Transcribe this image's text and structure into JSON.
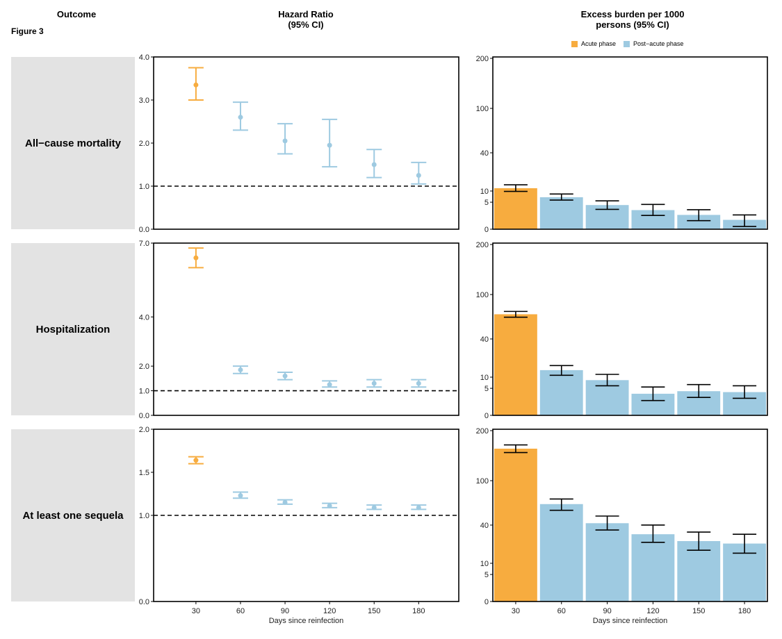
{
  "headers": {
    "outcome": "Outcome",
    "figure": "Figure 3",
    "hr_line1": "Hazard Ratio",
    "hr_line2": "(95% CI)",
    "burden_line1": "Excess burden per 1000",
    "burden_line2": "persons (95% CI)"
  },
  "legend": [
    {
      "label": "Acute phase",
      "color": "#f7ac3f"
    },
    {
      "label": "Post−acute phase",
      "color": "#9ecae1"
    }
  ],
  "colors": {
    "acute": "#f7ac3f",
    "post_acute": "#9ecae1",
    "panel_bg": "#e3e3e3"
  },
  "chart_data": [
    {
      "type": "scatter",
      "title": "All−cause mortality — Hazard Ratio (95% CI)",
      "row_label": "All−cause mortality",
      "xlabel": "Days since reinfection",
      "categories": [
        "30",
        "60",
        "90",
        "120",
        "150",
        "180"
      ],
      "estimate": [
        3.35,
        2.6,
        2.05,
        1.95,
        1.5,
        1.25
      ],
      "lower": [
        3.0,
        2.3,
        1.75,
        1.45,
        1.2,
        1.05
      ],
      "upper": [
        3.75,
        2.95,
        2.45,
        2.55,
        1.85,
        1.55
      ],
      "phase": [
        "acute",
        "post",
        "post",
        "post",
        "post",
        "post"
      ],
      "yticks": [
        "0.0",
        "1.0",
        "2.0",
        "3.0",
        "4.0"
      ],
      "ylim": [
        0.0,
        4.0
      ],
      "reference_line": 1.0
    },
    {
      "type": "bar",
      "title": "All−cause mortality — Excess burden per 1000 persons (95% CI)",
      "categories": [
        "30",
        "60",
        "90",
        "120",
        "150",
        "180"
      ],
      "values": [
        11.5,
        7.0,
        4.0,
        2.5,
        1.4,
        0.6
      ],
      "lower": [
        9.8,
        5.8,
        2.7,
        1.3,
        0.5,
        0.05
      ],
      "upper": [
        13.5,
        8.5,
        5.5,
        4.2,
        2.6,
        1.4
      ],
      "phase": [
        "acute",
        "post",
        "post",
        "post",
        "post",
        "post"
      ],
      "yticks": [
        "0",
        "5",
        "10",
        "40",
        "100",
        "200"
      ],
      "ylim": [
        0,
        200
      ],
      "yscale": "sqrt"
    },
    {
      "type": "scatter",
      "title": "Hospitalization — Hazard Ratio (95% CI)",
      "row_label": "Hospitalization",
      "xlabel": "Days since reinfection",
      "categories": [
        "30",
        "60",
        "90",
        "120",
        "150",
        "180"
      ],
      "estimate": [
        6.4,
        1.85,
        1.6,
        1.25,
        1.3,
        1.3
      ],
      "lower": [
        6.0,
        1.7,
        1.45,
        1.15,
        1.15,
        1.15
      ],
      "upper": [
        6.8,
        2.0,
        1.75,
        1.4,
        1.45,
        1.45
      ],
      "phase": [
        "acute",
        "post",
        "post",
        "post",
        "post",
        "post"
      ],
      "yticks": [
        "0.0",
        "1.0",
        "2.0",
        "4.0",
        "7.0"
      ],
      "ylim": [
        0.0,
        7.0
      ],
      "reference_line": 1.0
    },
    {
      "type": "bar",
      "title": "Hospitalization — Excess burden per 1000 persons (95% CI)",
      "categories": [
        "30",
        "60",
        "90",
        "120",
        "150",
        "180"
      ],
      "values": [
        70,
        14,
        8.5,
        3.2,
        4.0,
        3.7
      ],
      "lower": [
        66,
        11,
        6.0,
        1.5,
        2.2,
        2.0
      ],
      "upper": [
        74,
        17,
        11.5,
        5.5,
        6.5,
        6.0
      ],
      "phase": [
        "acute",
        "post",
        "post",
        "post",
        "post",
        "post"
      ],
      "yticks": [
        "0",
        "5",
        "10",
        "40",
        "100",
        "200"
      ],
      "ylim": [
        0,
        200
      ],
      "yscale": "sqrt"
    },
    {
      "type": "scatter",
      "title": "At least one sequela — Hazard Ratio (95% CI)",
      "row_label": "At least one sequela",
      "xlabel": "Days since reinfection",
      "categories": [
        "30",
        "60",
        "90",
        "120",
        "150",
        "180"
      ],
      "estimate": [
        1.64,
        1.23,
        1.15,
        1.11,
        1.09,
        1.09
      ],
      "lower": [
        1.6,
        1.2,
        1.13,
        1.09,
        1.07,
        1.07
      ],
      "upper": [
        1.68,
        1.27,
        1.18,
        1.14,
        1.12,
        1.12
      ],
      "phase": [
        "acute",
        "post",
        "post",
        "post",
        "post",
        "post"
      ],
      "yticks": [
        "0.0",
        "1.0",
        "1.5",
        "2.0"
      ],
      "ylim": [
        0.0,
        2.0
      ],
      "reference_line": 1.0
    },
    {
      "type": "bar",
      "title": "At least one sequela — Excess burden per 1000 persons (95% CI)",
      "categories": [
        "30",
        "60",
        "90",
        "120",
        "150",
        "180"
      ],
      "values": [
        160,
        65,
        42,
        31,
        25,
        23
      ],
      "lower": [
        152,
        57,
        35,
        24,
        18,
        16
      ],
      "upper": [
        168,
        72,
        50,
        40,
        33,
        31
      ],
      "phase": [
        "acute",
        "post",
        "post",
        "post",
        "post",
        "post"
      ],
      "yticks": [
        "0",
        "5",
        "10",
        "40",
        "100",
        "200"
      ],
      "ylim": [
        0,
        200
      ],
      "yscale": "sqrt"
    }
  ]
}
